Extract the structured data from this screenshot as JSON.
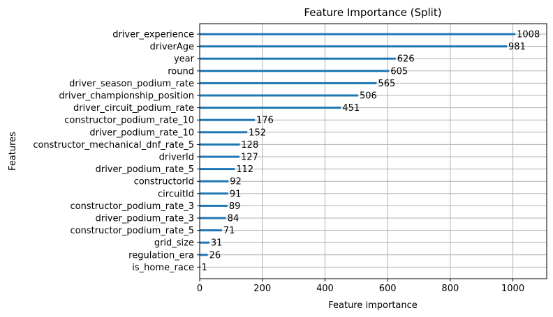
{
  "chart_data": {
    "type": "bar",
    "orientation": "horizontal",
    "title": "Feature Importance (Split)",
    "xlabel": "Feature importance",
    "ylabel": "Features",
    "xlim": [
      0,
      1108
    ],
    "xticks": [
      0,
      200,
      400,
      600,
      800,
      1000
    ],
    "grid": true,
    "categories": [
      "driver_experience",
      "driverAge",
      "year",
      "round",
      "driver_season_podium_rate",
      "driver_championship_position",
      "driver_circuit_podium_rate",
      "constructor_podium_rate_10",
      "driver_podium_rate_10",
      "constructor_mechanical_dnf_rate_5",
      "driverId",
      "driver_podium_rate_5",
      "constructorId",
      "circuitId",
      "constructor_podium_rate_3",
      "driver_podium_rate_3",
      "constructor_podium_rate_5",
      "grid_size",
      "regulation_era",
      "is_home_race"
    ],
    "values": [
      1008,
      981,
      626,
      605,
      565,
      506,
      451,
      176,
      152,
      128,
      127,
      112,
      92,
      91,
      89,
      84,
      71,
      31,
      26,
      1
    ],
    "bar_color": "#1f77b4",
    "grid_color": "#b0b0b0"
  }
}
